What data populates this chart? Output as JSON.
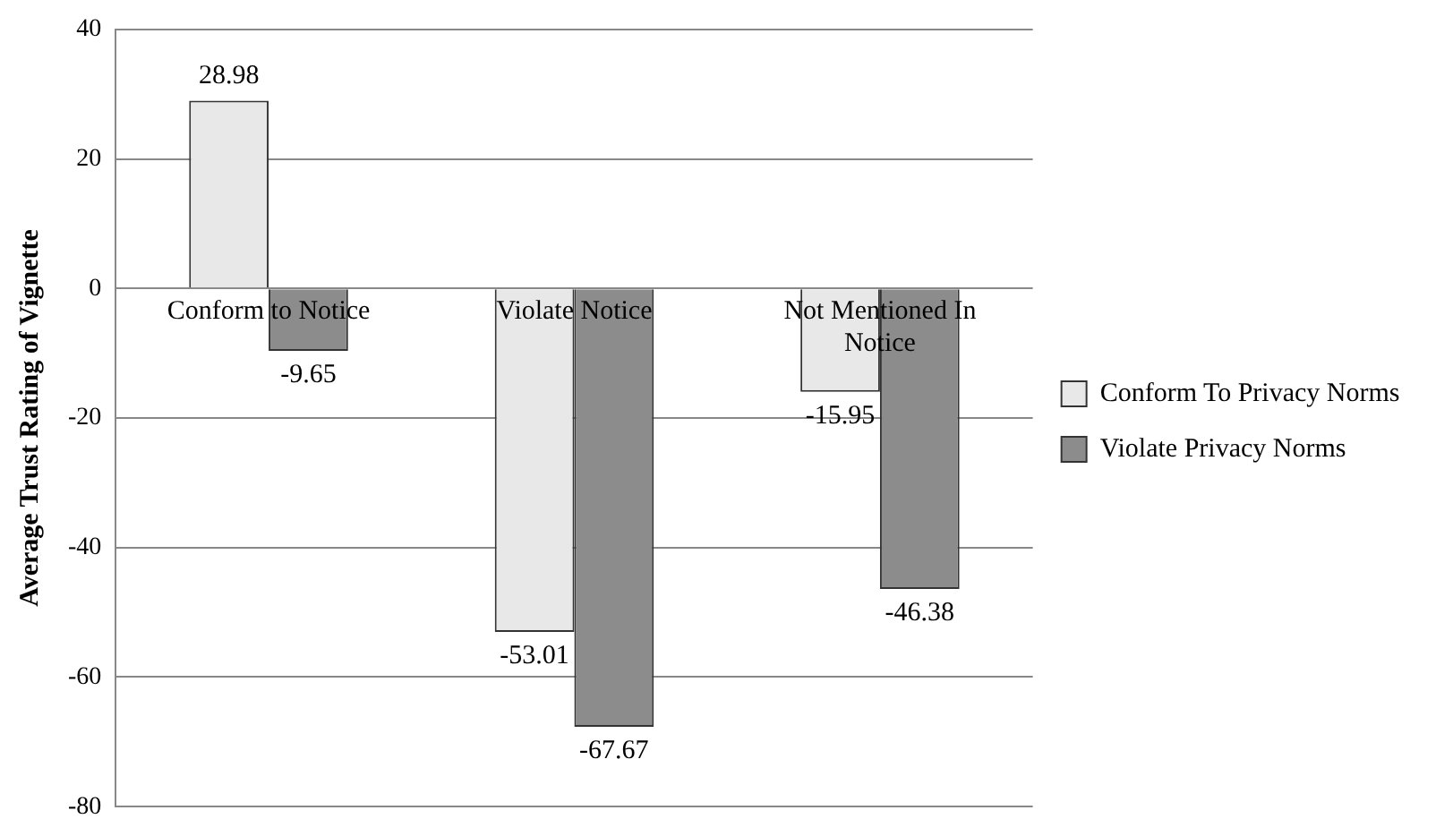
{
  "chart_data": {
    "type": "bar",
    "ylabel": "Average Trust Rating of Vignette",
    "categories": [
      "Conform to Notice",
      "Violate Notice",
      "Not Mentioned In Notice"
    ],
    "series": [
      {
        "name": "Conform To Privacy Norms",
        "color": "#e8e8e8",
        "values": [
          28.98,
          -53.01,
          -15.95
        ]
      },
      {
        "name": "Violate Privacy Norms",
        "color": "#8c8c8c",
        "values": [
          -9.65,
          -67.67,
          -46.38
        ]
      }
    ],
    "ylim": [
      -80,
      40
    ],
    "yticks": [
      -80,
      -60,
      -40,
      -20,
      0,
      20,
      40
    ],
    "grid": "y",
    "legend": "right",
    "data_labels": true
  }
}
